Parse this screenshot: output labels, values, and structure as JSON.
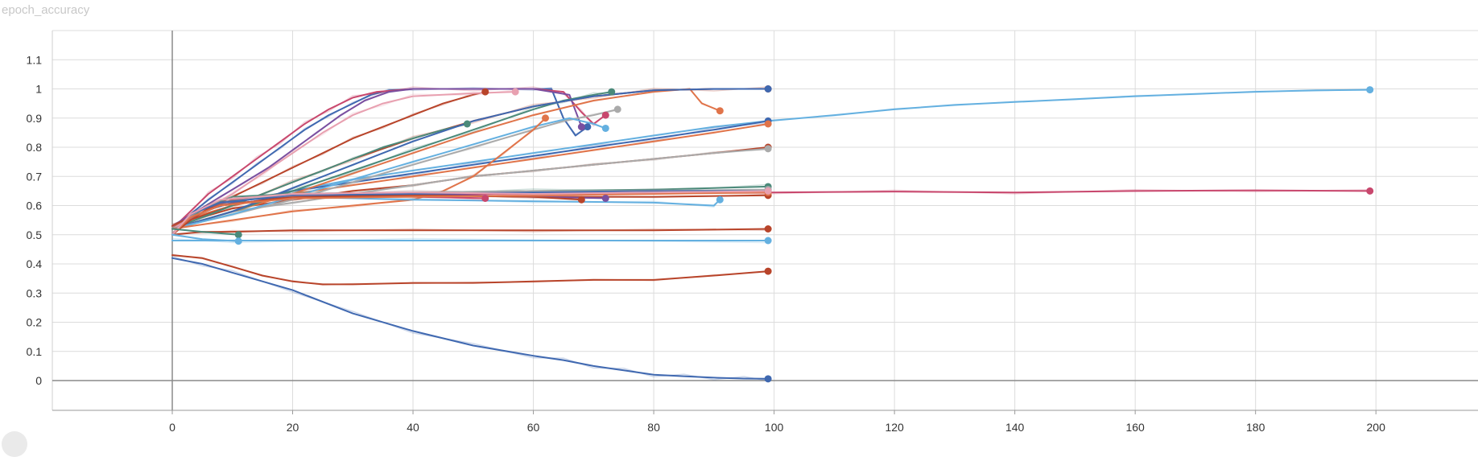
{
  "chart_title": "epoch_accuracy",
  "chart_data": {
    "type": "line",
    "title": "epoch_accuracy",
    "xlabel": "",
    "ylabel": "",
    "xlim": [
      -30,
      215
    ],
    "ylim": [
      -0.1,
      1.2
    ],
    "x_ticks": [
      0,
      20,
      40,
      60,
      80,
      100,
      120,
      140,
      160,
      180,
      200
    ],
    "y_ticks": [
      0,
      0.1,
      0.2,
      0.3,
      0.4,
      0.5,
      0.6,
      0.7,
      0.8,
      0.9,
      1,
      1.1
    ],
    "grid": true,
    "legend": "none",
    "smoothing": "light raw traces behind smoothed lines",
    "series": [
      {
        "color": "#64b0e0",
        "x": [
          0,
          5,
          10,
          15,
          20,
          30,
          40,
          50,
          60,
          70,
          80,
          90,
          99,
          110,
          120,
          130,
          140,
          150,
          160,
          170,
          180,
          190,
          199
        ],
        "y": [
          0.52,
          0.58,
          0.61,
          0.63,
          0.65,
          0.69,
          0.72,
          0.75,
          0.78,
          0.81,
          0.84,
          0.87,
          0.89,
          0.91,
          0.93,
          0.945,
          0.955,
          0.965,
          0.975,
          0.983,
          0.99,
          0.995,
          0.997
        ]
      },
      {
        "color": "#c8476d",
        "x": [
          0,
          3,
          8,
          20,
          40,
          60,
          80,
          99,
          120,
          140,
          160,
          180,
          199
        ],
        "y": [
          0.5,
          0.56,
          0.6,
          0.63,
          0.64,
          0.64,
          0.645,
          0.645,
          0.648,
          0.645,
          0.65,
          0.652,
          0.65
        ]
      },
      {
        "color": "#3f68b0",
        "x": [
          0,
          5,
          10,
          20,
          30,
          40,
          50,
          60,
          65,
          70,
          75,
          80,
          85,
          90,
          95,
          99
        ],
        "y": [
          0.42,
          0.4,
          0.37,
          0.31,
          0.23,
          0.17,
          0.12,
          0.085,
          0.07,
          0.05,
          0.035,
          0.02,
          0.015,
          0.01,
          0.007,
          0.006
        ]
      },
      {
        "color": "#b8442a",
        "x": [
          0,
          5,
          10,
          15,
          20,
          25,
          30,
          40,
          50,
          60,
          70,
          80,
          90,
          99
        ],
        "y": [
          0.43,
          0.42,
          0.39,
          0.36,
          0.34,
          0.33,
          0.33,
          0.335,
          0.335,
          0.34,
          0.345,
          0.345,
          0.36,
          0.375
        ]
      },
      {
        "color": "#b8442a",
        "x": [
          0,
          5,
          10,
          20,
          40,
          60,
          80,
          99
        ],
        "y": [
          0.5,
          0.51,
          0.51,
          0.515,
          0.515,
          0.515,
          0.515,
          0.52
        ]
      },
      {
        "color": "#64b0e0",
        "x": [
          0,
          10,
          40,
          99
        ],
        "y": [
          0.48,
          0.48,
          0.48,
          0.48
        ]
      },
      {
        "color": "#b8442a",
        "x": [
          0,
          5,
          10,
          20,
          30,
          40,
          50,
          60,
          70,
          80,
          90,
          99
        ],
        "y": [
          0.52,
          0.56,
          0.59,
          0.62,
          0.65,
          0.67,
          0.7,
          0.72,
          0.74,
          0.76,
          0.78,
          0.8
        ]
      },
      {
        "color": "#aaaaaa",
        "x": [
          0,
          5,
          10,
          20,
          30,
          40,
          50,
          60,
          70,
          80,
          90,
          99
        ],
        "y": [
          0.52,
          0.55,
          0.58,
          0.61,
          0.64,
          0.67,
          0.7,
          0.72,
          0.74,
          0.76,
          0.78,
          0.795
        ]
      },
      {
        "color": "#3f68b0",
        "x": [
          0,
          5,
          10,
          20,
          30,
          40,
          50,
          60,
          70,
          80,
          90,
          99
        ],
        "y": [
          0.52,
          0.58,
          0.61,
          0.65,
          0.68,
          0.71,
          0.74,
          0.77,
          0.8,
          0.83,
          0.86,
          0.89
        ]
      },
      {
        "color": "#e0744a",
        "x": [
          0,
          5,
          10,
          20,
          30,
          40,
          50,
          60,
          70,
          80,
          90,
          99
        ],
        "y": [
          0.52,
          0.57,
          0.6,
          0.64,
          0.67,
          0.7,
          0.73,
          0.76,
          0.79,
          0.82,
          0.85,
          0.88
        ]
      },
      {
        "color": "#3f68b0",
        "x": [
          0,
          3,
          6,
          10,
          14,
          18,
          22,
          26,
          30,
          33,
          36,
          40,
          50,
          60,
          63,
          65,
          67,
          69
        ],
        "y": [
          0.52,
          0.57,
          0.62,
          0.68,
          0.74,
          0.8,
          0.86,
          0.91,
          0.95,
          0.98,
          0.995,
          1.0,
          1.0,
          1.0,
          1.0,
          0.9,
          0.84,
          0.87
        ]
      },
      {
        "color": "#c8476d",
        "x": [
          0,
          3,
          6,
          10,
          14,
          18,
          22,
          26,
          30,
          34,
          40,
          50,
          60,
          65,
          68,
          70,
          72
        ],
        "y": [
          0.52,
          0.58,
          0.64,
          0.7,
          0.76,
          0.82,
          0.88,
          0.93,
          0.97,
          0.99,
          1.0,
          1.0,
          1.0,
          0.99,
          0.92,
          0.88,
          0.91
        ]
      },
      {
        "color": "#7a4fa0",
        "x": [
          0,
          4,
          8,
          12,
          16,
          20,
          24,
          28,
          32,
          36,
          40,
          50,
          60,
          66,
          68
        ],
        "y": [
          0.53,
          0.58,
          0.63,
          0.68,
          0.73,
          0.79,
          0.85,
          0.91,
          0.96,
          0.99,
          1.0,
          1.0,
          1.0,
          0.98,
          0.87
        ]
      },
      {
        "color": "#b8442a",
        "x": [
          0,
          5,
          10,
          15,
          20,
          25,
          30,
          35,
          40,
          45,
          50,
          52
        ],
        "y": [
          0.53,
          0.58,
          0.63,
          0.68,
          0.73,
          0.78,
          0.83,
          0.87,
          0.91,
          0.95,
          0.98,
          0.99
        ]
      },
      {
        "color": "#b8442a",
        "x": [
          0,
          10,
          20,
          30,
          40,
          50,
          60,
          70,
          80,
          90,
          99
        ],
        "y": [
          0.53,
          0.6,
          0.68,
          0.76,
          0.83,
          0.89,
          0.94,
          0.975,
          0.995,
          1.0,
          1.0
        ]
      },
      {
        "color": "#e0744a",
        "x": [
          0,
          10,
          20,
          30,
          40,
          50,
          60,
          70,
          80,
          86,
          88,
          91
        ],
        "y": [
          0.52,
          0.58,
          0.64,
          0.71,
          0.78,
          0.85,
          0.91,
          0.96,
          0.99,
          1.0,
          0.95,
          0.925
        ]
      },
      {
        "color": "#4b8a7a",
        "x": [
          0,
          5,
          10,
          15,
          20,
          25,
          30,
          35,
          40,
          45,
          49
        ],
        "y": [
          0.52,
          0.56,
          0.6,
          0.64,
          0.68,
          0.72,
          0.76,
          0.8,
          0.83,
          0.86,
          0.88
        ]
      },
      {
        "color": "#4b8a7a",
        "x": [
          0,
          10,
          20,
          30,
          40,
          50,
          60,
          65,
          70,
          73
        ],
        "y": [
          0.52,
          0.58,
          0.65,
          0.72,
          0.79,
          0.86,
          0.93,
          0.96,
          0.98,
          0.99
        ]
      },
      {
        "color": "#3f68b0",
        "x": [
          0,
          10,
          20,
          30,
          40,
          50,
          60,
          70,
          80,
          90,
          99
        ],
        "y": [
          0.52,
          0.58,
          0.66,
          0.74,
          0.82,
          0.89,
          0.94,
          0.975,
          0.995,
          1.0,
          1.0
        ]
      },
      {
        "color": "#aaaaaa",
        "x": [
          0,
          10,
          20,
          30,
          40,
          50,
          60,
          65,
          70,
          74
        ],
        "y": [
          0.52,
          0.57,
          0.62,
          0.68,
          0.74,
          0.8,
          0.86,
          0.89,
          0.91,
          0.93
        ]
      },
      {
        "color": "#e8a0b0",
        "x": [
          0,
          5,
          10,
          15,
          20,
          25,
          30,
          35,
          40,
          50,
          57
        ],
        "y": [
          0.52,
          0.58,
          0.64,
          0.71,
          0.78,
          0.85,
          0.91,
          0.95,
          0.975,
          0.985,
          0.99
        ]
      },
      {
        "color": "#64b0e0",
        "x": [
          0,
          10,
          20,
          30,
          40,
          50,
          60,
          66,
          70,
          72
        ],
        "y": [
          0.52,
          0.57,
          0.63,
          0.69,
          0.75,
          0.81,
          0.87,
          0.9,
          0.88,
          0.865
        ]
      },
      {
        "color": "#e0744a",
        "x": [
          0,
          10,
          20,
          30,
          40,
          45,
          50,
          55,
          60,
          62
        ],
        "y": [
          0.52,
          0.55,
          0.58,
          0.6,
          0.62,
          0.65,
          0.7,
          0.78,
          0.86,
          0.9
        ]
      },
      {
        "color": "#4b8a7a",
        "x": [
          0,
          3,
          6,
          10,
          20,
          40,
          60,
          80,
          99
        ],
        "y": [
          0.5,
          0.56,
          0.6,
          0.63,
          0.64,
          0.645,
          0.65,
          0.655,
          0.665
        ]
      },
      {
        "color": "#b8442a",
        "x": [
          0,
          3,
          6,
          10,
          20,
          40,
          60,
          80,
          99
        ],
        "y": [
          0.5,
          0.55,
          0.59,
          0.62,
          0.63,
          0.635,
          0.63,
          0.63,
          0.635
        ]
      },
      {
        "color": "#64b0e0",
        "x": [
          0,
          3,
          8,
          20,
          40,
          60,
          80,
          90,
          91
        ],
        "y": [
          0.5,
          0.56,
          0.6,
          0.63,
          0.62,
          0.615,
          0.61,
          0.6,
          0.62
        ]
      },
      {
        "color": "#c8476d",
        "x": [
          0,
          3,
          8,
          20,
          40,
          52
        ],
        "y": [
          0.5,
          0.56,
          0.6,
          0.63,
          0.63,
          0.625
        ]
      },
      {
        "color": "#7a4fa0",
        "x": [
          0,
          3,
          8,
          20,
          40,
          60,
          72
        ],
        "y": [
          0.5,
          0.57,
          0.61,
          0.64,
          0.64,
          0.63,
          0.625
        ]
      },
      {
        "color": "#b8442a",
        "x": [
          0,
          3,
          8,
          20,
          40,
          60,
          68
        ],
        "y": [
          0.5,
          0.56,
          0.6,
          0.63,
          0.635,
          0.63,
          0.62
        ]
      },
      {
        "color": "#aaaaaa",
        "x": [
          0,
          3,
          8,
          20,
          40,
          60,
          80,
          99
        ],
        "y": [
          0.5,
          0.57,
          0.61,
          0.64,
          0.645,
          0.65,
          0.65,
          0.655
        ]
      },
      {
        "color": "#3f68b0",
        "x": [
          0,
          3,
          8,
          20,
          40,
          60,
          80,
          99
        ],
        "y": [
          0.5,
          0.57,
          0.61,
          0.635,
          0.64,
          0.645,
          0.65,
          0.65
        ]
      },
      {
        "color": "#e0744a",
        "x": [
          0,
          3,
          8,
          20,
          40,
          60,
          80,
          99
        ],
        "y": [
          0.5,
          0.56,
          0.6,
          0.625,
          0.63,
          0.635,
          0.64,
          0.645
        ]
      },
      {
        "color": "#e8a0b0",
        "x": [
          0,
          3,
          8,
          20,
          40,
          60,
          80,
          99
        ],
        "y": [
          0.5,
          0.57,
          0.62,
          0.64,
          0.645,
          0.64,
          0.645,
          0.65
        ]
      },
      {
        "color": "#4b8a7a",
        "x": [
          0,
          5,
          11
        ],
        "y": [
          0.52,
          0.51,
          0.5
        ]
      },
      {
        "color": "#64b0e0",
        "x": [
          0,
          5,
          11
        ],
        "y": [
          0.5,
          0.485,
          0.478
        ]
      }
    ]
  }
}
